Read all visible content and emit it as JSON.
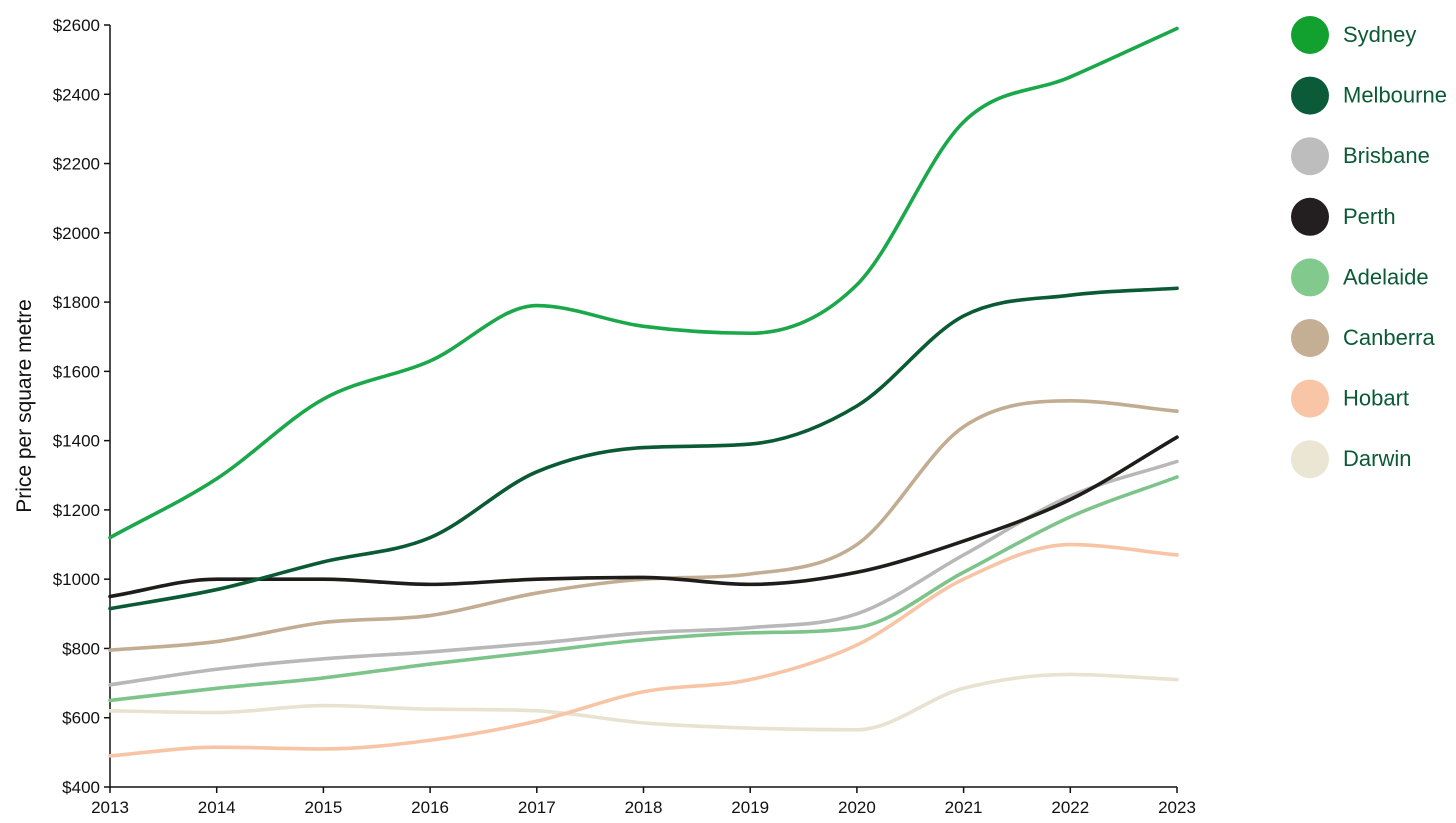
{
  "chart_data": {
    "type": "line",
    "title": "",
    "xlabel": "",
    "ylabel": "Price per square metre",
    "x": [
      2013,
      2014,
      2015,
      2016,
      2017,
      2018,
      2019,
      2020,
      2021,
      2022,
      2023
    ],
    "xlim": [
      2013,
      2023
    ],
    "ylim": [
      400,
      2600
    ],
    "y_ticks": [
      400,
      600,
      800,
      1000,
      1200,
      1400,
      1600,
      1800,
      2000,
      2200,
      2400,
      2600
    ],
    "y_tick_labels": [
      "$400",
      "$600",
      "$800",
      "$1000",
      "$1200",
      "$1400",
      "$1600",
      "$1800",
      "$2000",
      "$2200",
      "$2400",
      "$2600"
    ],
    "x_tick_labels": [
      "2013",
      "2014",
      "2015",
      "2016",
      "2017",
      "2018",
      "2019",
      "2020",
      "2021",
      "2022",
      "2023"
    ],
    "grid": false,
    "legend_position": "right",
    "series": [
      {
        "name": "Sydney",
        "color": "#1aa84a",
        "legend_color": "#12a12e",
        "values": [
          1120,
          1290,
          1520,
          1630,
          1790,
          1730,
          1710,
          1850,
          2320,
          2450,
          2590
        ]
      },
      {
        "name": "Melbourne",
        "color": "#0a5a34",
        "legend_color": "#0b5a38",
        "values": [
          915,
          970,
          1050,
          1120,
          1310,
          1380,
          1390,
          1500,
          1760,
          1820,
          1840
        ]
      },
      {
        "name": "Brisbane",
        "color": "#b8b8b8",
        "legend_color": "#bdbdbd",
        "values": [
          695,
          740,
          770,
          790,
          815,
          845,
          860,
          900,
          1070,
          1240,
          1340
        ]
      },
      {
        "name": "Perth",
        "color": "#1f1c1c",
        "legend_color": "#231f20",
        "values": [
          950,
          1000,
          1000,
          985,
          1000,
          1005,
          985,
          1020,
          1110,
          1230,
          1410
        ]
      },
      {
        "name": "Adelaide",
        "color": "#7dc48a",
        "legend_color": "#82c98e",
        "values": [
          650,
          685,
          715,
          755,
          790,
          825,
          845,
          860,
          1020,
          1180,
          1295
        ]
      },
      {
        "name": "Canberra",
        "color": "#c2ad93",
        "legend_color": "#c4ae94",
        "values": [
          795,
          820,
          875,
          895,
          960,
          1000,
          1015,
          1100,
          1440,
          1515,
          1485
        ]
      },
      {
        "name": "Hobart",
        "color": "#f7c5a5",
        "legend_color": "#f8c6a6",
        "values": [
          490,
          515,
          510,
          535,
          590,
          675,
          710,
          810,
          1000,
          1100,
          1070
        ]
      },
      {
        "name": "Darwin",
        "color": "#e8e2d0",
        "legend_color": "#ebe5d3",
        "values": [
          620,
          615,
          635,
          625,
          620,
          585,
          570,
          565,
          685,
          725,
          710
        ]
      }
    ]
  }
}
